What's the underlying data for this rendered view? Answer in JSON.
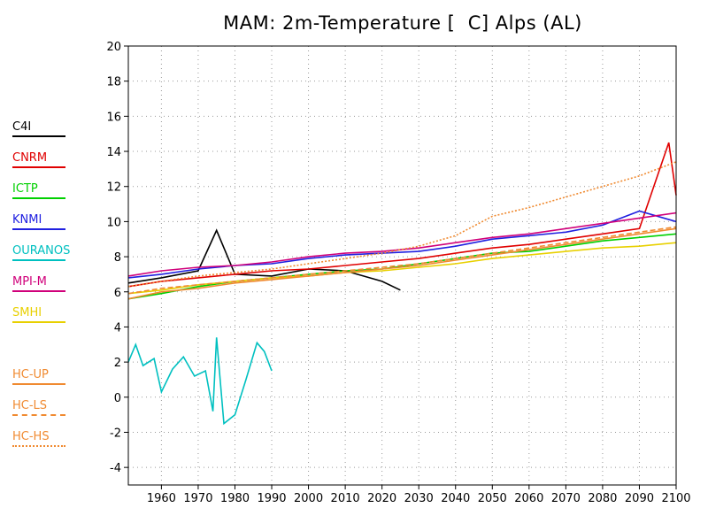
{
  "title": "MAM: 2m-Temperature [  C] Alps (AL)",
  "chart_data": {
    "type": "line",
    "title": "MAM: 2m-Temperature [  C] Alps (AL)",
    "xlabel": "",
    "ylabel": "",
    "xlim": [
      1951,
      2100
    ],
    "ylim": [
      -5,
      20
    ],
    "x_ticks": [
      "1960",
      "1970",
      "1980",
      "1990",
      "2000",
      "2010",
      "2020",
      "2030",
      "2040",
      "2050",
      "2060",
      "2070",
      "2080",
      "2090",
      "2100"
    ],
    "y_ticks": [
      "-4",
      "-2",
      "0",
      "2",
      "4",
      "6",
      "8",
      "10",
      "12",
      "14",
      "16",
      "18",
      "20"
    ],
    "grid": true,
    "legend_position": "left",
    "series": [
      {
        "name": "C4I",
        "color": "#000000",
        "style": "solid",
        "x": [
          1951,
          1960,
          1970,
          1975,
          1980,
          1990,
          2000,
          2010,
          2020,
          2025
        ],
        "y": [
          6.5,
          6.8,
          7.2,
          9.5,
          7.0,
          6.9,
          7.3,
          7.2,
          6.6,
          6.1
        ]
      },
      {
        "name": "CNRM",
        "color": "#e00000",
        "style": "solid",
        "x": [
          1951,
          1960,
          1970,
          1980,
          1990,
          2000,
          2010,
          2020,
          2030,
          2040,
          2050,
          2060,
          2070,
          2080,
          2090,
          2098,
          2100
        ],
        "y": [
          6.3,
          6.6,
          6.8,
          7.0,
          7.2,
          7.3,
          7.5,
          7.7,
          7.9,
          8.2,
          8.5,
          8.7,
          9.0,
          9.3,
          9.6,
          14.5,
          11.5
        ]
      },
      {
        "name": "ICTP",
        "color": "#00d000",
        "style": "solid",
        "x": [
          1951,
          1960,
          1970,
          1980,
          1990,
          2000,
          2010,
          2020,
          2030,
          2040,
          2050,
          2060,
          2070,
          2080,
          2090,
          2100
        ],
        "y": [
          5.6,
          5.9,
          6.3,
          6.6,
          6.8,
          7.0,
          7.2,
          7.3,
          7.6,
          7.9,
          8.2,
          8.3,
          8.6,
          8.9,
          9.1,
          9.3
        ]
      },
      {
        "name": "KNMI",
        "color": "#2020e0",
        "style": "solid",
        "x": [
          1951,
          1960,
          1970,
          1980,
          1990,
          2000,
          2010,
          2020,
          2030,
          2040,
          2050,
          2060,
          2070,
          2080,
          2090,
          2100
        ],
        "y": [
          6.8,
          7.0,
          7.3,
          7.5,
          7.6,
          7.9,
          8.1,
          8.2,
          8.3,
          8.6,
          9.0,
          9.2,
          9.4,
          9.8,
          10.6,
          10.0
        ]
      },
      {
        "name": "OURANOS",
        "color": "#00c0c0",
        "style": "solid",
        "x": [
          1951,
          1953,
          1955,
          1958,
          1960,
          1963,
          1966,
          1969,
          1972,
          1974,
          1975,
          1977,
          1980,
          1983,
          1986,
          1988,
          1990
        ],
        "y": [
          2.0,
          3.0,
          1.8,
          2.2,
          0.3,
          1.6,
          2.3,
          1.2,
          1.5,
          -0.8,
          3.4,
          -1.5,
          -1.0,
          1.0,
          3.1,
          2.6,
          1.5
        ]
      },
      {
        "name": "MPI-M",
        "color": "#d0007a",
        "style": "solid",
        "x": [
          1951,
          1960,
          1970,
          1980,
          1990,
          2000,
          2010,
          2020,
          2030,
          2040,
          2050,
          2060,
          2070,
          2080,
          2090,
          2100
        ],
        "y": [
          6.9,
          7.2,
          7.4,
          7.5,
          7.7,
          8.0,
          8.2,
          8.3,
          8.5,
          8.8,
          9.1,
          9.3,
          9.6,
          9.9,
          10.2,
          10.5
        ]
      },
      {
        "name": "SMHI",
        "color": "#e8d000",
        "style": "solid",
        "x": [
          1951,
          1960,
          1970,
          1980,
          1990,
          2000,
          2010,
          2020,
          2030,
          2040,
          2050,
          2060,
          2070,
          2080,
          2090,
          2100
        ],
        "y": [
          5.9,
          6.1,
          6.4,
          6.6,
          6.8,
          6.9,
          7.1,
          7.2,
          7.4,
          7.6,
          7.9,
          8.1,
          8.3,
          8.5,
          8.6,
          8.8
        ]
      },
      {
        "name": "HC-UP",
        "color": "#f08a30",
        "style": "solid",
        "x": [
          1951,
          1960,
          1970,
          1980,
          1990,
          2000,
          2010,
          2020,
          2030,
          2040,
          2050,
          2060,
          2070,
          2080,
          2090,
          2100
        ],
        "y": [
          5.6,
          6.0,
          6.2,
          6.5,
          6.7,
          6.9,
          7.1,
          7.3,
          7.5,
          7.8,
          8.1,
          8.4,
          8.7,
          9.0,
          9.3,
          9.6
        ]
      },
      {
        "name": "HC-LS",
        "color": "#f08a30",
        "style": "dashed",
        "x": [
          1951,
          1960,
          1970,
          1980,
          1990,
          2000,
          2010,
          2020,
          2030,
          2040,
          2050,
          2060,
          2070,
          2080,
          2090,
          2100
        ],
        "y": [
          5.9,
          6.2,
          6.4,
          6.6,
          6.8,
          7.0,
          7.2,
          7.4,
          7.6,
          7.9,
          8.2,
          8.5,
          8.8,
          9.1,
          9.4,
          9.7
        ]
      },
      {
        "name": "HC-HS",
        "color": "#f08a30",
        "style": "dotted",
        "x": [
          1951,
          1960,
          1970,
          1980,
          1990,
          2000,
          2010,
          2020,
          2030,
          2040,
          2050,
          2060,
          2070,
          2080,
          2090,
          2100
        ],
        "y": [
          6.3,
          6.6,
          6.9,
          7.1,
          7.3,
          7.6,
          7.9,
          8.2,
          8.6,
          9.2,
          10.3,
          10.8,
          11.4,
          12.0,
          12.6,
          13.4
        ]
      }
    ]
  }
}
